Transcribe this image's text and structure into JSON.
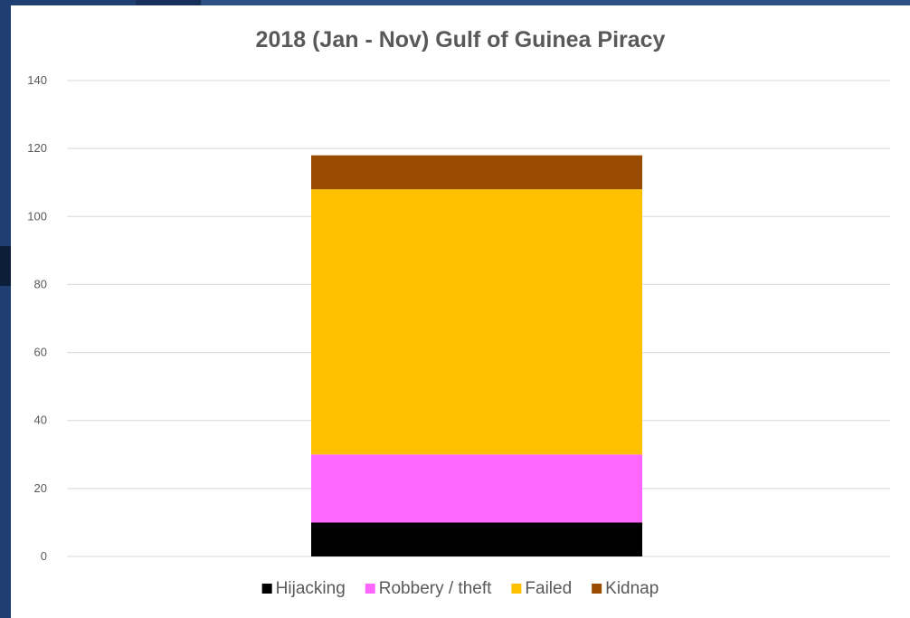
{
  "chart_data": {
    "type": "bar",
    "stacked": true,
    "title": "2018 (Jan - Nov) Gulf of Guinea Piracy",
    "xlabel": "",
    "ylabel": "",
    "categories": [
      ""
    ],
    "series": [
      {
        "name": "Hijacking",
        "values": [
          10
        ],
        "color": "#000000"
      },
      {
        "name": "Robbery / theft",
        "values": [
          20
        ],
        "color": "#ff66ff"
      },
      {
        "name": "Failed",
        "values": [
          78
        ],
        "color": "#ffc000"
      },
      {
        "name": "Kidnap",
        "values": [
          10
        ],
        "color": "#994c00"
      }
    ],
    "ylim": [
      0,
      140
    ],
    "yticks": [
      "0",
      "20",
      "40",
      "60",
      "80",
      "100",
      "120",
      "140"
    ],
    "grid": true,
    "legend_position": "bottom"
  }
}
